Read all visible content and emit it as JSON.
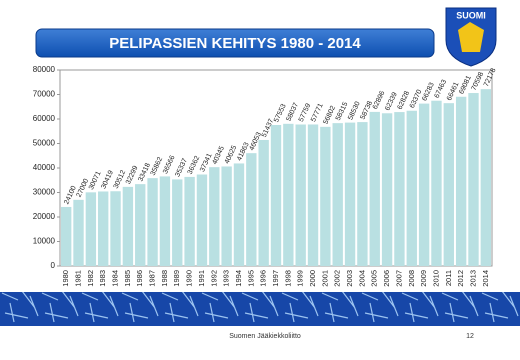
{
  "chart_data": {
    "type": "bar",
    "title": "PELIPASSIEN KEHITYS 1980 - 2014",
    "categories": [
      "1980",
      "1981",
      "1982",
      "1983",
      "1984",
      "1985",
      "1986",
      "1987",
      "1988",
      "1989",
      "1990",
      "1991",
      "1992",
      "1993",
      "1994",
      "1995",
      "1996",
      "1997",
      "1998",
      "1999",
      "2000",
      "2001",
      "2002",
      "2003",
      "2004",
      "2005",
      "2006",
      "2007",
      "2008",
      "2009",
      "2010",
      "2011",
      "2012",
      "2013",
      "2014"
    ],
    "values": [
      24100,
      27000,
      30071,
      30419,
      30512,
      32299,
      33418,
      35862,
      36566,
      35337,
      36362,
      37341,
      40345,
      40625,
      41863,
      46053,
      51437,
      57553,
      58037,
      57759,
      57771,
      56802,
      58315,
      58530,
      58738,
      62896,
      62339,
      62828,
      63370,
      66283,
      67463,
      66461,
      69081,
      70598,
      72178
    ],
    "color": "#b9e0e2",
    "ylim": [
      0,
      80000
    ],
    "yticks": [
      0,
      10000,
      20000,
      30000,
      40000,
      50000,
      60000,
      70000,
      80000
    ],
    "grid": false
  },
  "logo": {
    "text": "SUOMI"
  },
  "footer": {
    "organization": "Suomen Jääkiekkoliitto",
    "page": "12"
  }
}
